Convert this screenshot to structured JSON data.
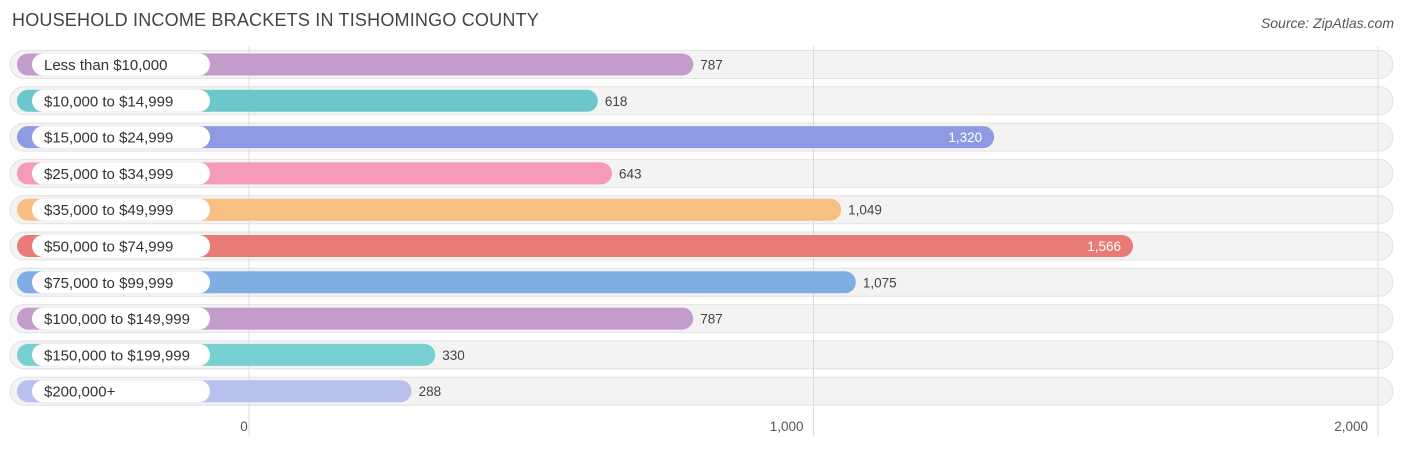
{
  "title": "HOUSEHOLD INCOME BRACKETS IN TISHOMINGO COUNTY",
  "source": "Source: ZipAtlas.com",
  "chart_data": {
    "type": "bar",
    "orientation": "horizontal",
    "categories": [
      "Less than $10,000",
      "$10,000 to $14,999",
      "$15,000 to $24,999",
      "$25,000 to $34,999",
      "$35,000 to $49,999",
      "$50,000 to $74,999",
      "$75,000 to $99,999",
      "$100,000 to $149,999",
      "$150,000 to $199,999",
      "$200,000+"
    ],
    "values": [
      787,
      618,
      1320,
      643,
      1049,
      1566,
      1075,
      787,
      330,
      288
    ],
    "value_labels": [
      "787",
      "618",
      "1,320",
      "643",
      "1,049",
      "1,566",
      "1,075",
      "787",
      "330",
      "288"
    ],
    "colors": [
      "#c39ccb",
      "#6cc7cc",
      "#8e9ae2",
      "#f59ab7",
      "#f8bf82",
      "#e87b76",
      "#7eaee3",
      "#c39ccb",
      "#79d0d3",
      "#b8c0ee"
    ],
    "xticks": [
      0,
      1000,
      2000
    ],
    "xtick_labels": [
      "0",
      "1,000",
      "2,000"
    ],
    "xlim": [
      0,
      2000
    ],
    "grid": true
  }
}
